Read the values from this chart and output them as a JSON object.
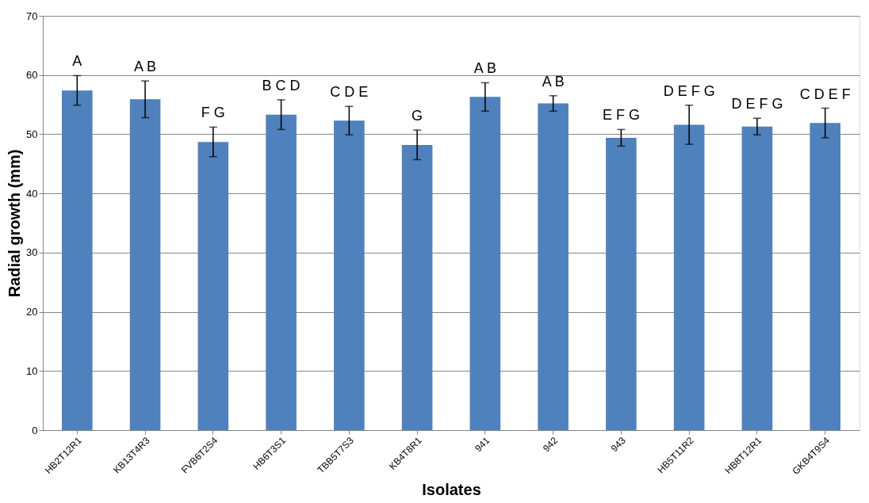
{
  "chart_data": {
    "type": "bar",
    "xlabel": "Isolates",
    "ylabel": "Radial growth  (mm)",
    "categories": [
      "HB2T12R1",
      "KB13T4R3",
      "FVB6T2S4",
      "HB6T3S1",
      "TBB5T7S3",
      "KB4T8R1",
      "941",
      "942",
      "943",
      "HB5T11R2",
      "HB8T12R1",
      "GKB4T9S4"
    ],
    "values": [
      57.4,
      55.9,
      48.7,
      53.3,
      52.3,
      48.2,
      56.3,
      55.2,
      49.4,
      51.6,
      51.3,
      51.9
    ],
    "errors": [
      2.5,
      3.1,
      2.5,
      2.5,
      2.4,
      2.5,
      2.4,
      1.3,
      1.4,
      3.3,
      1.4,
      2.5
    ],
    "color": "#4f81bd",
    "ylim": [
      0,
      70
    ],
    "yticks": [
      0,
      10,
      20,
      30,
      40,
      50,
      60,
      70
    ],
    "grid": "y",
    "annotations": [
      "A",
      "A B",
      "F G",
      "B C D",
      "C D E",
      "G",
      "A B",
      "A B",
      "E F G",
      "D E F G",
      "D E F G",
      "C D E F"
    ]
  }
}
